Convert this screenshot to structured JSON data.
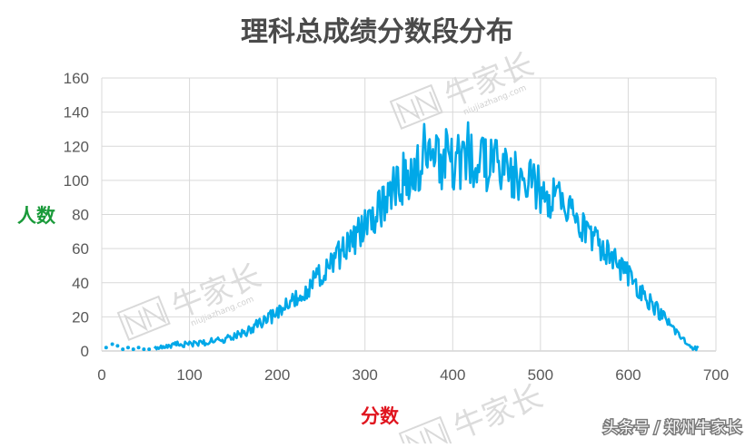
{
  "chart_data": {
    "type": "line",
    "title": "理科总成绩分数段分布",
    "xlabel": "分数",
    "ylabel": "人数",
    "xlim": [
      0,
      700
    ],
    "ylim": [
      0,
      160
    ],
    "x_ticks": [
      "0",
      "100",
      "200",
      "300",
      "400",
      "500",
      "600",
      "700"
    ],
    "y_ticks": [
      "0",
      "20",
      "40",
      "60",
      "80",
      "100",
      "120",
      "140",
      "160"
    ],
    "grid": true,
    "legend": "none",
    "series_color": "#00a8e8",
    "scatter_points": {
      "x": [
        5,
        12,
        18,
        24,
        30,
        36,
        42,
        48,
        54
      ],
      "y": [
        2,
        4,
        3,
        1,
        2,
        1,
        2,
        1,
        1
      ]
    },
    "profile": {
      "x": [
        60,
        75,
        90,
        100,
        120,
        140,
        160,
        180,
        200,
        220,
        240,
        260,
        280,
        300,
        320,
        340,
        360,
        380,
        400,
        420,
        440,
        460,
        480,
        500,
        520,
        540,
        560,
        580,
        600,
        620,
        640,
        660,
        670,
        680
      ],
      "y": [
        1,
        3,
        4,
        4,
        5,
        7,
        10,
        16,
        22,
        30,
        40,
        50,
        62,
        72,
        85,
        100,
        108,
        112,
        110,
        113,
        110,
        105,
        100,
        95,
        88,
        75,
        65,
        55,
        45,
        32,
        20,
        8,
        3,
        1
      ]
    },
    "peaks": {
      "x": [
        367,
        383,
        392,
        408,
        418,
        438
      ],
      "y": [
        133,
        125,
        130,
        118,
        134,
        124
      ]
    }
  },
  "watermark": {
    "brand": "牛家长",
    "domain": "niujiazhang.com"
  },
  "credit": "头条号 / 郑州牛家长"
}
